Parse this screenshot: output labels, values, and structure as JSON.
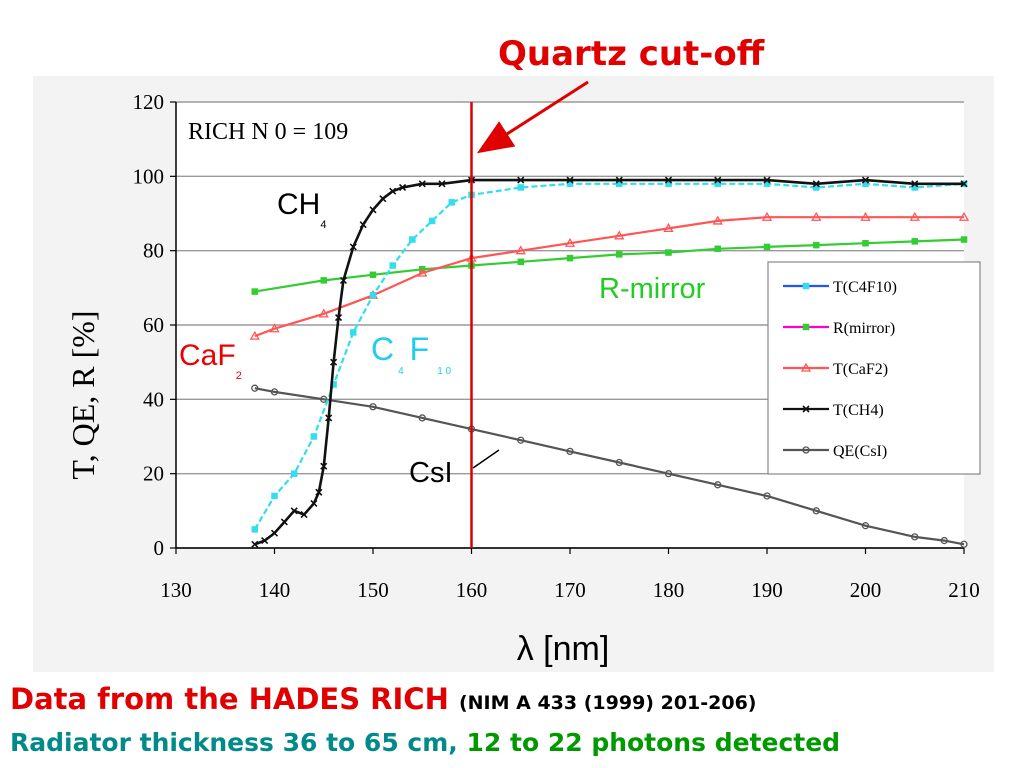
{
  "header": {
    "title": "Quartz cut-off"
  },
  "footer": {
    "line1_main": "Data from the HADES RICH",
    "line1_ref": "(NIM A 433 (1999) 201-206)",
    "line2_part1": "Radiator thickness 36 to 65 cm,",
    "line2_part2": "12 to 22 photons detected"
  },
  "colors": {
    "title": "#e00000",
    "c4f10": "#33ddee",
    "c4f10_legend_line": "#2255ff",
    "mirror": "#33cc33",
    "mirror_legend_line": "#ff00cc",
    "caf2": "#ff5555",
    "ch4": "#111111",
    "qe": "#555555",
    "cutoff_line": "#dd0000",
    "footer_teal": "#008a8a",
    "footer_green": "#009900"
  },
  "chart_data": {
    "type": "line",
    "title": "RICH  N 0 = 109",
    "xlabel": "λ [nm]",
    "ylabel": "T, QE, R  [%]",
    "xlim": [
      130,
      210
    ],
    "ylim": [
      0,
      120
    ],
    "xticks": [
      130,
      140,
      150,
      160,
      170,
      180,
      190,
      200,
      210
    ],
    "yticks": [
      0,
      20,
      40,
      60,
      80,
      100,
      120
    ],
    "grid": "horizontal",
    "legend_position": "right",
    "cutoff": {
      "x": 160,
      "label": "Quartz cut-off"
    },
    "annotations": {
      "ch4": {
        "main": "CH",
        "sub": "4"
      },
      "caf2": {
        "main": "CaF",
        "sub": "2"
      },
      "c4f10": {
        "main1": "C",
        "sub1": "4",
        "main2": "F",
        "sub2": "1 0"
      },
      "mirror": "R-mirror",
      "csi": "CsI"
    },
    "series": [
      {
        "name": "T(C4F10)",
        "key": "c4f10",
        "x": [
          138,
          140,
          142,
          144,
          146,
          148,
          150,
          152,
          154,
          156,
          158,
          160,
          165,
          170,
          175,
          180,
          185,
          190,
          195,
          200,
          205,
          210
        ],
        "y": [
          5,
          14,
          20,
          30,
          44,
          58,
          68,
          76,
          83,
          88,
          93,
          95,
          97,
          98,
          98,
          98,
          98,
          98,
          97,
          98,
          97,
          98
        ]
      },
      {
        "name": "R(mirror)",
        "key": "mirror",
        "x": [
          138,
          145,
          150,
          155,
          160,
          165,
          170,
          175,
          180,
          185,
          190,
          195,
          200,
          205,
          210
        ],
        "y": [
          69,
          72,
          73.5,
          75,
          76,
          77,
          78,
          79,
          79.5,
          80.5,
          81,
          81.5,
          82,
          82.5,
          83
        ]
      },
      {
        "name": "T(CaF2)",
        "key": "caf2",
        "x": [
          138,
          140,
          145,
          150,
          155,
          160,
          165,
          170,
          175,
          180,
          185,
          190,
          195,
          200,
          205,
          210
        ],
        "y": [
          57,
          59,
          63,
          68,
          74,
          78,
          80,
          82,
          84,
          86,
          88,
          89,
          89,
          89,
          89,
          89
        ]
      },
      {
        "name": "T(CH4)",
        "key": "ch4",
        "x": [
          138,
          139,
          140,
          141,
          142,
          143,
          144,
          144.5,
          145,
          145.5,
          146,
          146.5,
          147,
          148,
          149,
          150,
          151,
          152,
          153,
          155,
          157,
          160,
          165,
          170,
          175,
          180,
          185,
          190,
          195,
          200,
          205,
          210
        ],
        "y": [
          1,
          2,
          4,
          7,
          10,
          9,
          12,
          15,
          22,
          35,
          50,
          62,
          72,
          81,
          87,
          91,
          94,
          96,
          97,
          98,
          98,
          99,
          99,
          99,
          99,
          99,
          99,
          99,
          98,
          99,
          98,
          98
        ]
      },
      {
        "name": "QE(CsI)",
        "key": "qe",
        "x": [
          138,
          140,
          145,
          150,
          155,
          160,
          165,
          170,
          175,
          180,
          185,
          190,
          195,
          200,
          205,
          208,
          210
        ],
        "y": [
          43,
          42,
          40,
          38,
          35,
          32,
          29,
          26,
          23,
          20,
          17,
          14,
          10,
          6,
          3,
          2,
          1
        ]
      }
    ]
  }
}
